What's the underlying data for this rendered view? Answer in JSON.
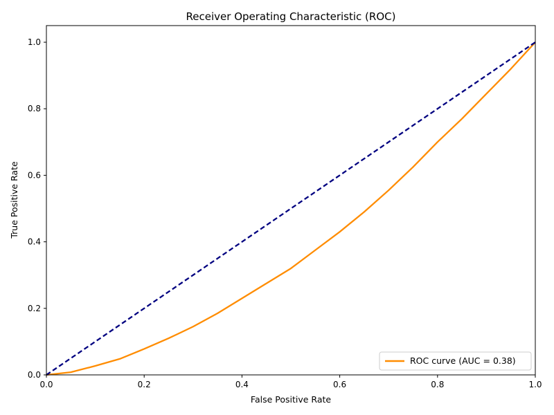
{
  "chart_data": {
    "type": "line",
    "title": "Receiver Operating Characteristic (ROC)",
    "xlabel": "False Positive Rate",
    "ylabel": "True Positive Rate",
    "xlim": [
      0.0,
      1.0
    ],
    "ylim": [
      0.0,
      1.05
    ],
    "x_ticks": [
      "0.0",
      "0.2",
      "0.4",
      "0.6",
      "0.8",
      "1.0"
    ],
    "y_ticks": [
      "0.0",
      "0.2",
      "0.4",
      "0.6",
      "0.8",
      "1.0"
    ],
    "grid": false,
    "legend_position": "lower-right",
    "series": [
      {
        "name": "ROC curve (AUC = 0.38)",
        "color": "#ff8c00",
        "style": "solid",
        "x": [
          0.0,
          0.05,
          0.1,
          0.15,
          0.2,
          0.25,
          0.3,
          0.35,
          0.4,
          0.45,
          0.5,
          0.55,
          0.6,
          0.65,
          0.7,
          0.75,
          0.8,
          0.85,
          0.9,
          0.95,
          1.0
        ],
        "y": [
          0.0,
          0.008,
          0.027,
          0.048,
          0.078,
          0.11,
          0.145,
          0.185,
          0.23,
          0.275,
          0.32,
          0.375,
          0.43,
          0.49,
          0.555,
          0.625,
          0.7,
          0.77,
          0.845,
          0.92,
          1.0
        ]
      },
      {
        "name": "",
        "color": "#000080",
        "style": "dashed",
        "x": [
          0.0,
          1.0
        ],
        "y": [
          0.0,
          1.0
        ]
      }
    ]
  }
}
